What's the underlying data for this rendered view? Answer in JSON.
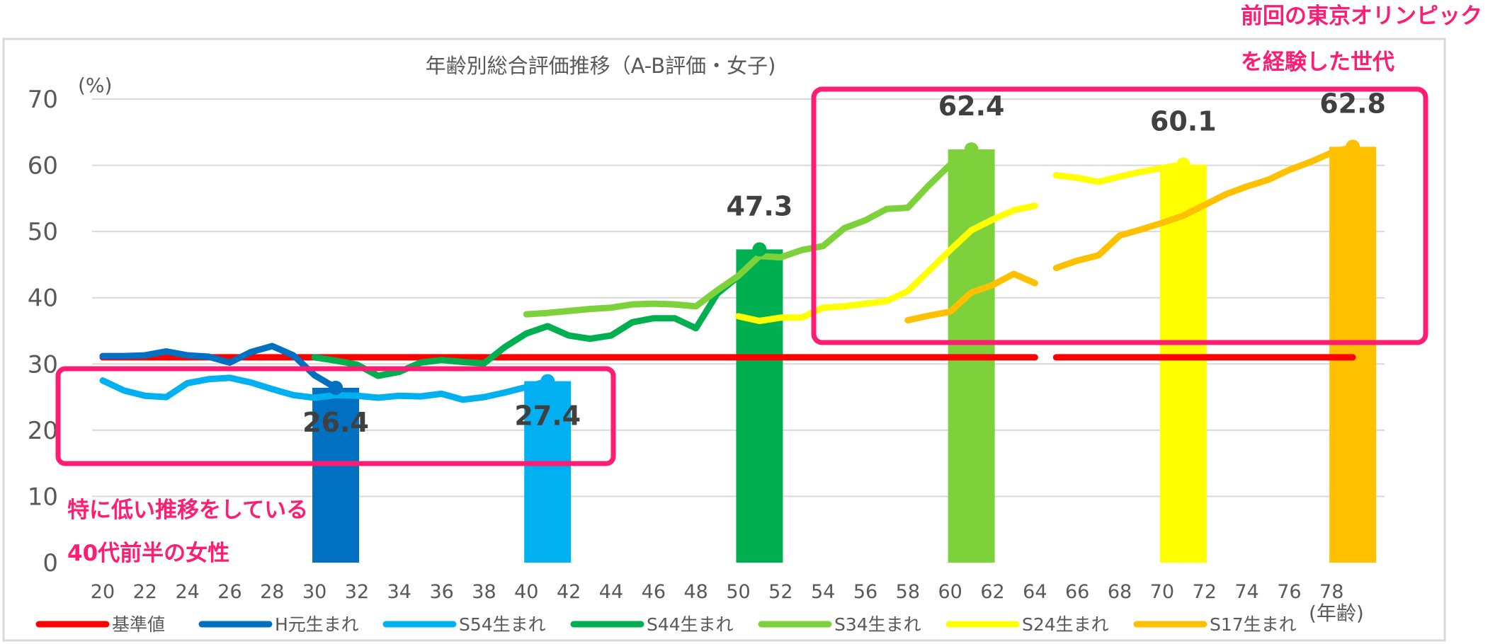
{
  "chart_data": {
    "type": "bar+line",
    "title": "年齢別総合評価推移（A-B評価・女子)",
    "ylabel": "(%)",
    "xlabel": "(年齢)",
    "ylim": [
      0,
      70
    ],
    "xlim": [
      19.5,
      80.5
    ],
    "yticks": [
      0,
      10,
      20,
      30,
      40,
      50,
      60,
      70
    ],
    "xticks": [
      20,
      22,
      24,
      26,
      28,
      30,
      32,
      34,
      36,
      38,
      40,
      42,
      44,
      46,
      48,
      50,
      52,
      54,
      56,
      58,
      60,
      62,
      64,
      66,
      68,
      70,
      72,
      74,
      76,
      78
    ],
    "grid": true,
    "legend_position": "bottom",
    "bars": [
      {
        "x": 31,
        "value": 26.4,
        "label": "26.4",
        "color": "#0070c0"
      },
      {
        "x": 41,
        "value": 27.4,
        "label": "27.4",
        "color": "#00b0f0"
      },
      {
        "x": 51,
        "value": 47.3,
        "label": "47.3",
        "color": "#00b050"
      },
      {
        "x": 61,
        "value": 62.4,
        "label": "62.4",
        "color": "#7dd13a"
      },
      {
        "x": 71,
        "value": 60.1,
        "label": "60.1",
        "color": "#ffff00"
      },
      {
        "x": 79,
        "value": 62.8,
        "label": "62.8",
        "color": "#ffc000"
      }
    ],
    "series": [
      {
        "name": "基準値",
        "color": "#ff0000",
        "segments": [
          {
            "x": [
              20,
              64
            ],
            "values": [
              31,
              31
            ]
          },
          {
            "x": [
              65,
              79
            ],
            "values": [
              31,
              31
            ]
          }
        ]
      },
      {
        "name": "H元生まれ",
        "color": "#0070c0",
        "segments": [
          {
            "x": [
              20,
              21,
              22,
              23,
              24,
              25,
              26,
              27,
              28,
              29,
              30,
              31
            ],
            "values": [
              31.2,
              31.2,
              31.3,
              31.9,
              31.3,
              31.1,
              30.2,
              31.8,
              32.7,
              31.3,
              28.3,
              26.4
            ]
          }
        ]
      },
      {
        "name": "S54生まれ",
        "color": "#00b0f0",
        "segments": [
          {
            "x": [
              20,
              21,
              22,
              23,
              24,
              25,
              26,
              27,
              28,
              29,
              30,
              31,
              32,
              33,
              34,
              35,
              36,
              37,
              38,
              39,
              40,
              41
            ],
            "values": [
              27.5,
              26.0,
              25.2,
              25.0,
              27.1,
              27.7,
              27.9,
              27.2,
              26.2,
              25.3,
              24.9,
              25.3,
              25.2,
              24.9,
              25.2,
              25.1,
              25.5,
              24.6,
              25.0,
              25.7,
              26.5,
              27.4
            ]
          }
        ]
      },
      {
        "name": "S44生まれ",
        "color": "#00b050",
        "segments": [
          {
            "x": [
              30,
              31,
              32,
              33,
              34,
              35,
              36,
              37,
              38,
              39,
              40,
              41,
              42,
              43,
              44,
              45,
              46,
              47,
              48,
              49,
              50,
              51
            ],
            "values": [
              31.0,
              30.5,
              29.9,
              28.2,
              28.8,
              30.2,
              30.6,
              30.3,
              30.1,
              32.6,
              34.6,
              35.7,
              34.3,
              33.8,
              34.3,
              36.3,
              36.9,
              36.9,
              35.4,
              40.6,
              43.2,
              47.3
            ]
          }
        ]
      },
      {
        "name": "S34生まれ",
        "color": "#7dd13a",
        "segments": [
          {
            "x": [
              40,
              41,
              42,
              43,
              44,
              45,
              46,
              47,
              48,
              49,
              50,
              51,
              52,
              53,
              54,
              55,
              56,
              57,
              58,
              59,
              60,
              61
            ],
            "values": [
              37.5,
              37.7,
              38.0,
              38.3,
              38.5,
              39.0,
              39.1,
              39.0,
              38.7,
              41.1,
              43.3,
              46.3,
              46.1,
              47.2,
              47.8,
              50.5,
              51.7,
              53.4,
              53.6,
              57.0,
              60.1,
              62.4
            ]
          }
        ]
      },
      {
        "name": "S24生まれ",
        "color": "#ffff00",
        "segments": [
          {
            "x": [
              50,
              51,
              52,
              53,
              54,
              55,
              56,
              57,
              58,
              59,
              60,
              61,
              62,
              63,
              64
            ],
            "values": [
              37.2,
              36.5,
              37.0,
              37.0,
              38.5,
              38.7,
              39.1,
              39.5,
              41.0,
              44.1,
              47.2,
              50.2,
              51.8,
              53.2,
              53.9
            ]
          },
          {
            "x": [
              65,
              66,
              67,
              68,
              69,
              70,
              71
            ],
            "values": [
              58.5,
              58.1,
              57.5,
              58.3,
              59.0,
              59.6,
              60.1
            ]
          }
        ]
      },
      {
        "name": "S17生まれ",
        "color": "#ffc000",
        "segments": [
          {
            "x": [
              58,
              59,
              60,
              61,
              62,
              63,
              64
            ],
            "values": [
              36.6,
              37.3,
              37.9,
              40.8,
              41.9,
              43.6,
              42.2
            ]
          },
          {
            "x": [
              65,
              66,
              67,
              68,
              69,
              70,
              71,
              72,
              73,
              74,
              75,
              76,
              77,
              78,
              79
            ],
            "values": [
              44.5,
              45.6,
              46.4,
              49.4,
              50.3,
              51.3,
              52.4,
              54.0,
              55.6,
              56.8,
              57.8,
              59.3,
              60.5,
              61.9,
              62.8
            ]
          }
        ]
      }
    ]
  },
  "annotations": {
    "top_right_line1": "前回の東京オリンピック",
    "top_right_line2": "を経験した世代",
    "left_line1": "特に低い推移をしている",
    "left_line2": "40代前半の女性",
    "highlight_color": "#ff1c73"
  }
}
